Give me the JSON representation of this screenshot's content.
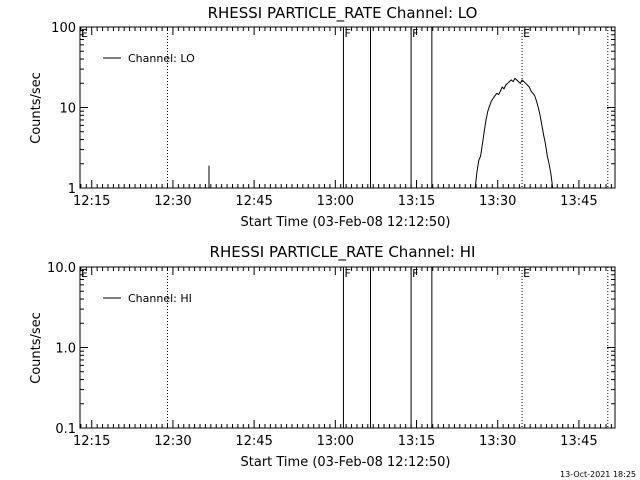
{
  "timestamp": "13-Oct-2021 18:25",
  "chart_data": [
    {
      "type": "line",
      "title": "RHESSI PARTICLE_RATE Channel: LO",
      "xlabel": "Start Time (03-Feb-08 12:12:50)",
      "ylabel": "Counts/sec",
      "y_scale": "log",
      "ylim": [
        1,
        100
      ],
      "xlim": [
        "12:12:50",
        "13:51:40"
      ],
      "x_ticks": [
        "12:15",
        "12:30",
        "12:45",
        "13:00",
        "13:15",
        "13:30",
        "13:45"
      ],
      "y_ticks": [
        "1",
        "10",
        "100"
      ],
      "legend": {
        "label": "Channel: LO",
        "position": "top-left"
      },
      "series": [
        {
          "name": "Channel: LO",
          "segments": [
            {
              "x": [
                "12:36:40",
                "12:36:40"
              ],
              "y": [
                1,
                1.9
              ]
            },
            {
              "x": [
                "13:25:50",
                "13:26:10",
                "13:26:30",
                "13:26:50",
                "13:27:10",
                "13:27:30",
                "13:27:50",
                "13:28:10",
                "13:28:30",
                "13:28:50",
                "13:29:10",
                "13:29:30",
                "13:29:50",
                "13:30:10",
                "13:30:30",
                "13:30:50",
                "13:31:10",
                "13:31:30",
                "13:31:50",
                "13:32:10",
                "13:32:30",
                "13:32:50",
                "13:33:10",
                "13:33:30",
                "13:33:50",
                "13:34:10",
                "13:34:30",
                "13:34:50",
                "13:35:10",
                "13:35:30",
                "13:35:50",
                "13:36:10",
                "13:36:30",
                "13:36:50",
                "13:37:10",
                "13:37:30",
                "13:37:50",
                "13:38:10",
                "13:38:30",
                "13:38:50",
                "13:39:10",
                "13:39:30",
                "13:39:50",
                "13:40:10"
              ],
              "y": [
                1,
                1.6,
                2.2,
                2.5,
                3.5,
                5,
                7,
                9,
                10.5,
                12,
                13,
                14,
                15,
                14.5,
                16,
                18,
                17,
                19,
                20,
                21,
                22,
                21,
                23,
                22,
                21,
                20,
                22,
                21,
                20,
                19,
                18,
                16,
                15,
                14,
                12,
                10,
                8,
                6,
                4.5,
                3.5,
                2.5,
                2,
                1.5,
                1
              ]
            }
          ]
        }
      ],
      "vertical_lines": [
        {
          "x": "12:29:00",
          "style": "dotted",
          "label": ""
        },
        {
          "x": "13:01:30",
          "style": "solid",
          "label": "F"
        },
        {
          "x": "13:06:30",
          "style": "solid",
          "label": ""
        },
        {
          "x": "13:14:00",
          "style": "solid",
          "label": "F"
        },
        {
          "x": "13:17:50",
          "style": "solid",
          "label": ""
        },
        {
          "x": "13:34:30",
          "style": "dotted",
          "label": "E"
        },
        {
          "x": "13:50:20",
          "style": "dotted",
          "label": ""
        }
      ],
      "corner_marker": "E"
    },
    {
      "type": "line",
      "title": "RHESSI PARTICLE_RATE Channel: HI",
      "xlabel": "Start Time (03-Feb-08 12:12:50)",
      "ylabel": "Counts/sec",
      "y_scale": "log",
      "ylim": [
        0.1,
        10
      ],
      "xlim": [
        "12:12:50",
        "13:51:40"
      ],
      "x_ticks": [
        "12:15",
        "12:30",
        "12:45",
        "13:00",
        "13:15",
        "13:30",
        "13:45"
      ],
      "y_ticks": [
        "0.1",
        "1.0",
        "10.0"
      ],
      "legend": {
        "label": "Channel: HI",
        "position": "top-left"
      },
      "series": [
        {
          "name": "Channel: HI",
          "segments": []
        }
      ],
      "vertical_lines": [
        {
          "x": "12:29:00",
          "style": "dotted",
          "label": ""
        },
        {
          "x": "13:01:30",
          "style": "solid",
          "label": "F"
        },
        {
          "x": "13:06:30",
          "style": "solid",
          "label": ""
        },
        {
          "x": "13:14:00",
          "style": "solid",
          "label": "F"
        },
        {
          "x": "13:17:50",
          "style": "solid",
          "label": ""
        },
        {
          "x": "13:34:30",
          "style": "dotted",
          "label": "E"
        },
        {
          "x": "13:50:20",
          "style": "dotted",
          "label": ""
        }
      ],
      "corner_marker": "E"
    }
  ]
}
